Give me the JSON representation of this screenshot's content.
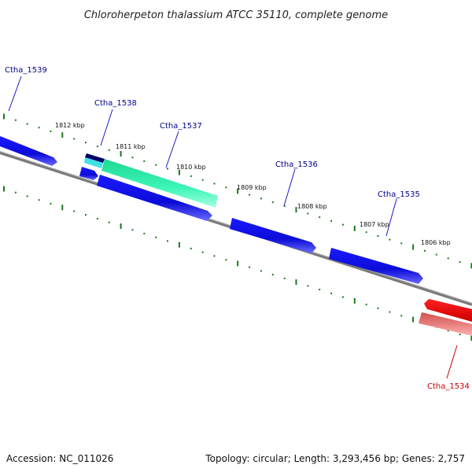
{
  "title": "Chloroherpeton thalassium ATCC 35110, complete genome",
  "footer": {
    "accession": "Accession: NC_011026",
    "summary": "Topology: circular; Length: 3,293,456 bp; Genes: 2,757"
  },
  "scale_labels": [
    "1812 kbp",
    "1811 kbp",
    "1810 kbp",
    "1809 kbp",
    "1808 kbp",
    "1807 kbp",
    "1806 kbp"
  ],
  "genes": [
    {
      "label": "Ctha_1539",
      "color": "#00008b"
    },
    {
      "label": "Ctha_1538",
      "color": "#00008b"
    },
    {
      "label": "Ctha_1537",
      "color": "#00008b"
    },
    {
      "label": "Ctha_1536",
      "color": "#00008b"
    },
    {
      "label": "Ctha_1535",
      "color": "#00008b"
    },
    {
      "label": "Ctha_1534",
      "color": "#cc0000"
    }
  ],
  "colors": {
    "forward_cds": "#1010e0",
    "reverse_cds": "#ee0000",
    "reverse_cds_light": "#f08080",
    "rna_feature": "#30f0b0",
    "rna_feature_light": "#40e0e8",
    "backbone": "#7a7a7a",
    "tick": "#1a7a1a"
  }
}
